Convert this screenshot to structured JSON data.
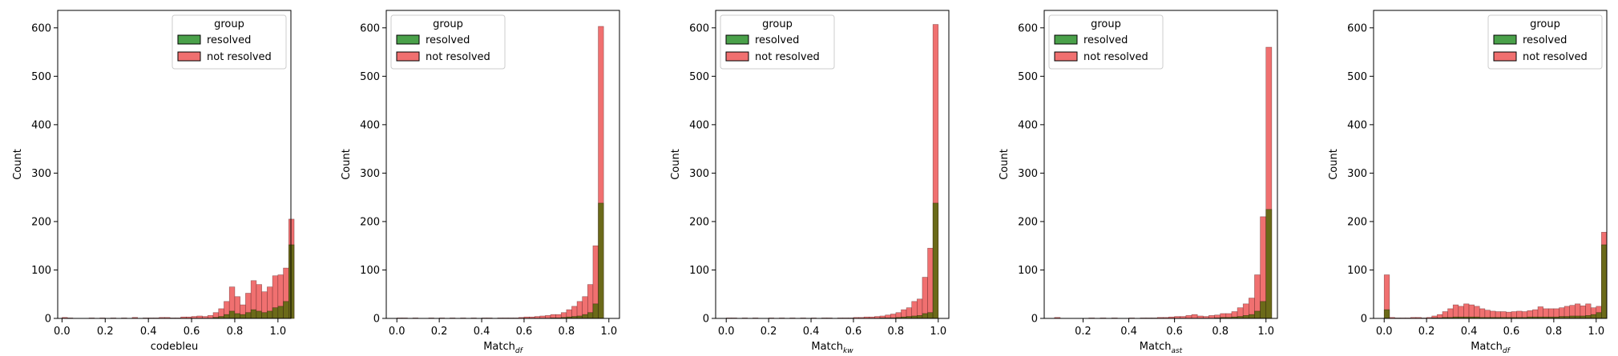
{
  "colors": {
    "resolved": "#4aa14a",
    "not_resolved": "#f07070",
    "overlap": "#6b6a19"
  },
  "chart_data": [
    {
      "type": "histogram",
      "ylabel": "Count",
      "xlabel": {
        "base": "codebleu",
        "sub": ""
      },
      "xlim": [
        -0.02,
        1.06
      ],
      "ylim": [
        0,
        636
      ],
      "xticks": [
        "0.0",
        "0.2",
        "0.4",
        "0.6",
        "0.8",
        "1.0"
      ],
      "yticks": [
        "0",
        "100",
        "200",
        "300",
        "400",
        "500",
        "600"
      ],
      "grid": false,
      "legend": {
        "title": "group",
        "placement": "top-right",
        "entries": [
          "resolved",
          "not resolved"
        ]
      },
      "bin_start": 0.0,
      "bin_width": 0.025,
      "series": [
        {
          "name": "not resolved",
          "values": [
            2,
            1,
            0,
            0,
            0,
            1,
            0,
            1,
            0,
            1,
            0,
            1,
            0,
            2,
            0,
            1,
            1,
            1,
            2,
            2,
            1,
            1,
            3,
            3,
            4,
            5,
            4,
            6,
            12,
            20,
            35,
            65,
            45,
            28,
            52,
            78,
            70,
            55,
            65,
            88,
            90,
            104,
            205
          ]
        },
        {
          "name": "resolved",
          "values": [
            0,
            0,
            0,
            0,
            0,
            0,
            0,
            0,
            0,
            0,
            0,
            0,
            0,
            0,
            0,
            0,
            0,
            0,
            0,
            0,
            0,
            0,
            0,
            0,
            0,
            0,
            0,
            0,
            2,
            4,
            8,
            15,
            10,
            8,
            12,
            18,
            15,
            12,
            15,
            22,
            25,
            35,
            152
          ]
        }
      ]
    },
    {
      "type": "histogram",
      "ylabel": "Count",
      "xlabel": {
        "base": "Match",
        "sub": "df"
      },
      "xlim": [
        -0.05,
        1.05
      ],
      "ylim": [
        0,
        636
      ],
      "xticks": [
        "0.0",
        "0.2",
        "0.4",
        "0.6",
        "0.8",
        "1.0"
      ],
      "yticks": [
        "0",
        "100",
        "200",
        "300",
        "400",
        "500",
        "600"
      ],
      "grid": false,
      "legend": {
        "title": "group",
        "placement": "top-left",
        "entries": [
          "resolved",
          "not resolved"
        ]
      },
      "bin_start": 0.0,
      "bin_width": 0.025,
      "series": [
        {
          "name": "not resolved",
          "values": [
            1,
            1,
            0,
            1,
            0,
            0,
            1,
            0,
            1,
            0,
            1,
            0,
            1,
            0,
            1,
            0,
            1,
            1,
            0,
            1,
            1,
            1,
            1,
            2,
            3,
            3,
            4,
            5,
            6,
            8,
            8,
            12,
            18,
            25,
            35,
            45,
            70,
            150,
            603
          ]
        },
        {
          "name": "resolved",
          "values": [
            0,
            0,
            0,
            0,
            0,
            0,
            0,
            0,
            0,
            0,
            0,
            0,
            0,
            0,
            0,
            0,
            0,
            0,
            0,
            0,
            0,
            0,
            0,
            0,
            0,
            0,
            0,
            0,
            0,
            1,
            1,
            2,
            3,
            4,
            5,
            8,
            12,
            30,
            238
          ]
        }
      ]
    },
    {
      "type": "histogram",
      "ylabel": "Count",
      "xlabel": {
        "base": "Match",
        "sub": "kw"
      },
      "xlim": [
        -0.05,
        1.05
      ],
      "ylim": [
        0,
        636
      ],
      "xticks": [
        "0.0",
        "0.2",
        "0.4",
        "0.6",
        "0.8",
        "1.0"
      ],
      "yticks": [
        "0",
        "100",
        "200",
        "300",
        "400",
        "500",
        "600"
      ],
      "grid": false,
      "legend": {
        "title": "group",
        "placement": "top-left",
        "entries": [
          "resolved",
          "not resolved"
        ]
      },
      "bin_start": 0.0,
      "bin_width": 0.025,
      "series": [
        {
          "name": "not resolved",
          "values": [
            1,
            1,
            0,
            1,
            0,
            1,
            0,
            0,
            1,
            0,
            1,
            0,
            1,
            0,
            1,
            0,
            1,
            0,
            1,
            1,
            0,
            1,
            1,
            1,
            2,
            2,
            3,
            3,
            4,
            5,
            7,
            9,
            12,
            18,
            22,
            35,
            40,
            85,
            145,
            607
          ]
        },
        {
          "name": "resolved",
          "values": [
            0,
            0,
            0,
            0,
            0,
            0,
            0,
            0,
            0,
            0,
            0,
            0,
            0,
            0,
            0,
            0,
            0,
            0,
            0,
            0,
            0,
            0,
            0,
            0,
            0,
            0,
            0,
            0,
            0,
            1,
            1,
            1,
            2,
            3,
            4,
            5,
            6,
            10,
            12,
            238
          ]
        }
      ]
    },
    {
      "type": "histogram",
      "ylabel": "Count",
      "xlabel": {
        "base": "Match",
        "sub": "ast"
      },
      "xlim": [
        0.03,
        1.05
      ],
      "ylim": [
        0,
        636
      ],
      "xticks": [
        "0.2",
        "0.4",
        "0.6",
        "0.8",
        "1.0"
      ],
      "yticks": [
        "0",
        "100",
        "200",
        "300",
        "400",
        "500",
        "600"
      ],
      "grid": false,
      "legend": {
        "title": "group",
        "placement": "top-left",
        "entries": [
          "resolved",
          "not resolved"
        ]
      },
      "bin_start": 0.075,
      "bin_width": 0.025,
      "series": [
        {
          "name": "not resolved",
          "values": [
            2,
            0,
            0,
            0,
            0,
            0,
            1,
            0,
            1,
            0,
            1,
            0,
            0,
            1,
            0,
            1,
            1,
            1,
            2,
            2,
            3,
            4,
            4,
            6,
            8,
            5,
            4,
            6,
            7,
            10,
            10,
            14,
            22,
            30,
            42,
            90,
            210,
            560
          ]
        },
        {
          "name": "resolved",
          "values": [
            0,
            0,
            0,
            0,
            0,
            0,
            0,
            0,
            0,
            0,
            0,
            0,
            0,
            0,
            0,
            0,
            0,
            0,
            0,
            0,
            0,
            0,
            0,
            0,
            0,
            0,
            0,
            0,
            1,
            2,
            2,
            3,
            4,
            6,
            8,
            15,
            35,
            225
          ]
        }
      ]
    },
    {
      "type": "histogram",
      "ylabel": "Count",
      "xlabel": {
        "base": "Match",
        "sub": "df"
      },
      "xlim": [
        -0.05,
        1.05
      ],
      "ylim": [
        0,
        636
      ],
      "xticks": [
        "0.0",
        "0.2",
        "0.4",
        "0.6",
        "0.8",
        "1.0"
      ],
      "yticks": [
        "0",
        "100",
        "200",
        "300",
        "400",
        "500",
        "600"
      ],
      "grid": false,
      "legend": {
        "title": "group",
        "placement": "top-right",
        "entries": [
          "resolved",
          "not resolved"
        ]
      },
      "bin_start": 0.0,
      "bin_width": 0.025,
      "series": [
        {
          "name": "not resolved",
          "values": [
            90,
            2,
            1,
            1,
            1,
            2,
            2,
            1,
            2,
            5,
            8,
            14,
            20,
            28,
            25,
            30,
            28,
            25,
            20,
            17,
            15,
            14,
            14,
            13,
            14,
            15,
            14,
            16,
            18,
            24,
            20,
            20,
            20,
            22,
            25,
            27,
            30,
            26,
            30,
            22,
            25,
            178
          ]
        },
        {
          "name": "resolved",
          "values": [
            18,
            0,
            0,
            0,
            0,
            0,
            0,
            0,
            0,
            1,
            1,
            2,
            2,
            3,
            3,
            3,
            3,
            3,
            2,
            2,
            2,
            2,
            2,
            2,
            2,
            2,
            2,
            3,
            3,
            3,
            3,
            3,
            3,
            4,
            4,
            5,
            5,
            5,
            6,
            8,
            12,
            152
          ]
        }
      ]
    }
  ]
}
